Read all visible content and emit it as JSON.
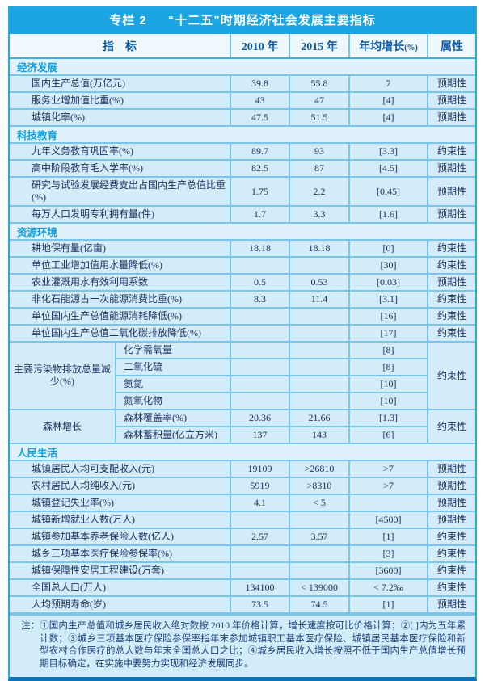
{
  "title": {
    "label": "专栏 2",
    "text": "“十二五”时期经济社会发展主要指标"
  },
  "header": {
    "indicator": "指　标",
    "col_2010": "2010 年",
    "col_2015": "2015 年",
    "growth": "年均增长",
    "growth_unit": "(%)",
    "attribute": "属性"
  },
  "sections": [
    {
      "name": "经济发展",
      "rows": [
        {
          "label": "国内生产总值(万亿元)",
          "v2010": "39.8",
          "v2015": "55.8",
          "growth": "7",
          "attr": "预期性"
        },
        {
          "label": "服务业增加值比重(%)",
          "v2010": "43",
          "v2015": "47",
          "growth": "[4]",
          "attr": "预期性"
        },
        {
          "label": "城镇化率(%)",
          "v2010": "47.5",
          "v2015": "51.5",
          "growth": "[4]",
          "attr": "预期性"
        }
      ]
    },
    {
      "name": "科技教育",
      "rows": [
        {
          "label": "九年义务教育巩固率(%)",
          "v2010": "89.7",
          "v2015": "93",
          "growth": "[3.3]",
          "attr": "约束性"
        },
        {
          "label": "高中阶段教育毛入学率(%)",
          "v2010": "82.5",
          "v2015": "87",
          "growth": "[4.5]",
          "attr": "预期性"
        },
        {
          "label": "研究与试验发展经费支出占国内生产总值比重(%)",
          "v2010": "1.75",
          "v2015": "2.2",
          "growth": "[0.45]",
          "attr": "预期性"
        },
        {
          "label": "每万人口发明专利拥有量(件)",
          "v2010": "1.7",
          "v2015": "3.3",
          "growth": "[1.6]",
          "attr": "预期性"
        }
      ]
    },
    {
      "name": "资源环境",
      "rows": [
        {
          "label": "耕地保有量(亿亩)",
          "v2010": "18.18",
          "v2015": "18.18",
          "growth": "[0]",
          "attr": "约束性"
        },
        {
          "label": "单位工业增加值用水量降低(%)",
          "v2010": "",
          "v2015": "",
          "growth": "[30]",
          "attr": "约束性"
        },
        {
          "label": "农业灌溉用水有效利用系数",
          "v2010": "0.5",
          "v2015": "0.53",
          "growth": "[0.03]",
          "attr": "预期性"
        },
        {
          "label": "非化石能源占一次能源消费比重(%)",
          "v2010": "8.3",
          "v2015": "11.4",
          "growth": "[3.1]",
          "attr": "约束性"
        },
        {
          "label": "单位国内生产总值能源消耗降低(%)",
          "v2010": "",
          "v2015": "",
          "growth": "[16]",
          "attr": "约束性"
        },
        {
          "label": "单位国内生产总值二氧化碳排放降低(%)",
          "v2010": "",
          "v2015": "",
          "growth": "[17]",
          "attr": "约束性"
        },
        {
          "group": "主要污染物排放总量减少(%)",
          "attr": "约束性",
          "sub_rows": [
            {
              "label": "化学需氧量",
              "v2010": "",
              "v2015": "",
              "growth": "[8]"
            },
            {
              "label": "二氧化硫",
              "v2010": "",
              "v2015": "",
              "growth": "[8]"
            },
            {
              "label": "氨氮",
              "v2010": "",
              "v2015": "",
              "growth": "[10]"
            },
            {
              "label": "氮氧化物",
              "v2010": "",
              "v2015": "",
              "growth": "[10]"
            }
          ]
        },
        {
          "group": "森林增长",
          "attr": "约束性",
          "sub_rows": [
            {
              "label": "森林覆盖率(%)",
              "v2010": "20.36",
              "v2015": "21.66",
              "growth": "[1.3]"
            },
            {
              "label": "森林蓄积量(亿立方米)",
              "v2010": "137",
              "v2015": "143",
              "growth": "[6]"
            }
          ]
        }
      ]
    },
    {
      "name": "人民生活",
      "rows": [
        {
          "label": "城镇居民人均可支配收入(元)",
          "v2010": "19109",
          "v2015": ">26810",
          "growth": ">7",
          "attr": "预期性"
        },
        {
          "label": "农村居民人均纯收入(元)",
          "v2010": "5919",
          "v2015": ">8310",
          "growth": ">7",
          "attr": "预期性"
        },
        {
          "label": "城镇登记失业率(%)",
          "v2010": "4.1",
          "v2015": "< 5",
          "growth": "",
          "attr": "预期性"
        },
        {
          "label": "城镇新增就业人数(万人)",
          "v2010": "",
          "v2015": "",
          "growth": "[4500]",
          "attr": "预期性"
        },
        {
          "label": "城镇参加基本养老保险人数(亿人)",
          "v2010": "2.57",
          "v2015": "3.57",
          "growth": "[1]",
          "attr": "约束性"
        },
        {
          "label": "城乡三项基本医疗保险参保率(%)",
          "v2010": "",
          "v2015": "",
          "growth": "[3]",
          "attr": "约束性"
        },
        {
          "label": "城镇保障性安居工程建设(万套)",
          "v2010": "",
          "v2015": "",
          "growth": "[3600]",
          "attr": "约束性"
        },
        {
          "label": "全国总人口(万人)",
          "v2010": "134100",
          "v2015": "< 139000",
          "growth": "< 7.2‰",
          "attr": "约束性"
        },
        {
          "label": "人均预期寿命(岁)",
          "v2010": "73.5",
          "v2015": "74.5",
          "growth": "[1]",
          "attr": "预期性"
        }
      ]
    }
  ],
  "notes": "注：①国内生产总值和城乡居民收入绝对数按 2010 年价格计算，增长速度按可比价格计算；②[ ]内为五年累计数；③城乡三项基本医疗保险参保率指年末参加城镇职工基本医疗保险、城镇居民基本医疗保险和新型农村合作医疗的总人数与年末全国总人口之比；④城乡居民收入增长按照不低于国内生产总值增长预期目标确定，在实施中要努力实现和经济发展同步。",
  "colors": {
    "title_bar": "#1ba5e2",
    "frame": "#2ba5df",
    "bottom_bar": "#0a72b8",
    "header_bg": "#eef8fd",
    "header_text": "#0c5ba6",
    "section_bg": "#dff2fb",
    "section_text": "#109ddd",
    "row_bg": "#d2ecf9",
    "grid_line": "#7ac6eb",
    "data_text": "#1d3260",
    "notes_text": "#1a3f7e"
  }
}
